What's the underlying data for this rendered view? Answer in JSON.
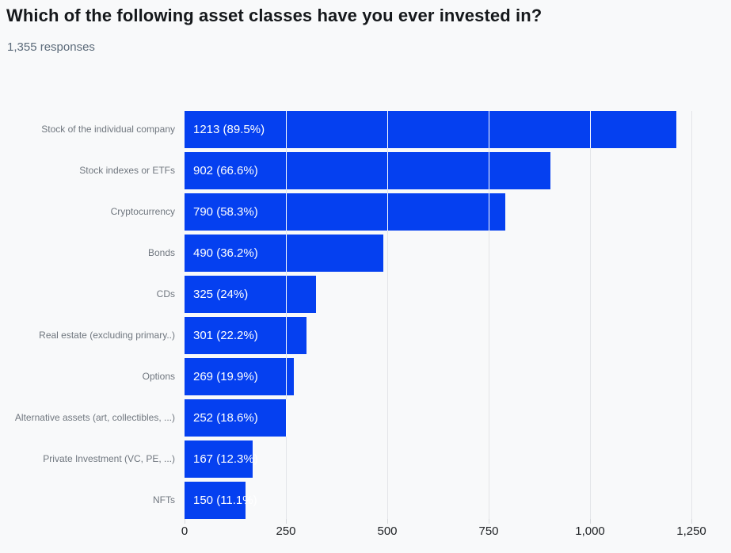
{
  "header": {
    "title": "Which of the following asset classes have you ever invested in?",
    "subtitle": "1,355 responses"
  },
  "colors": {
    "background": "#f8f9fa",
    "bar": "#0540f0",
    "grid": "#e3e5e8",
    "bar_internal_grid": "#ffffff",
    "title_text": "#15181b",
    "subtitle_text": "#5c6b7a",
    "category_text": "#70777f",
    "value_text": "#ffffff",
    "tick_text": "#1e2124"
  },
  "chart_data": {
    "type": "bar",
    "orientation": "horizontal",
    "title": "Which of the following asset classes have you ever invested in?",
    "subtitle": "1,355 responses",
    "total_responses": 1355,
    "categories": [
      "Stock of the individual company",
      "Stock indexes or ETFs",
      "Cryptocurrency",
      "Bonds",
      "CDs",
      "Real estate (excluding primary..)",
      "Options",
      "Alternative assets (art, collectibles, ...)",
      "Private Investment (VC, PE, ...)",
      "NFTs"
    ],
    "values": [
      1213,
      902,
      790,
      490,
      325,
      301,
      269,
      252,
      167,
      150
    ],
    "percentages": [
      89.5,
      66.6,
      58.3,
      36.2,
      24,
      22.2,
      19.9,
      18.6,
      12.3,
      11.1
    ],
    "bar_labels": [
      "1213 (89.5%)",
      "902 (66.6%)",
      "790 (58.3%)",
      "490 (36.2%)",
      "325 (24%)",
      "301 (22.2%)",
      "269 (19.9%)",
      "252 (18.6%)",
      "167 (12.3%)",
      "150 (11.1%)"
    ],
    "xlabel": "",
    "ylabel": "",
    "xlim": [
      0,
      1250
    ],
    "xticks": [
      0,
      250,
      500,
      750,
      1000,
      1250
    ],
    "xtick_labels": [
      "0",
      "250",
      "500",
      "750",
      "1,000",
      "1,250"
    ],
    "grid": "vertical-gridlines",
    "legend": "none"
  }
}
